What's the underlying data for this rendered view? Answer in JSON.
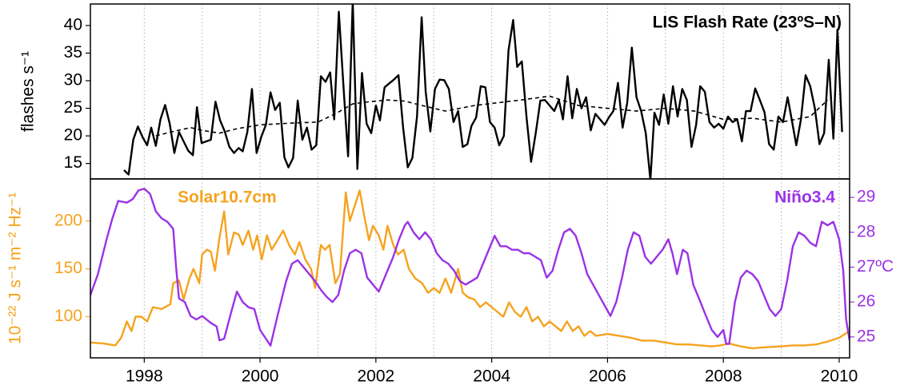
{
  "chart_data": [
    {
      "type": "line",
      "title": "LIS Flash Rate (23ºS–N)",
      "ylabel": "flashes s⁻¹",
      "xlim": [
        1997.07,
        2010.18
      ],
      "ylim": [
        12.2,
        43.9
      ],
      "yticks": [
        15,
        20,
        25,
        30,
        35,
        40
      ],
      "xgrid": [
        1998,
        1999,
        2000,
        2001,
        2002,
        2003,
        2004,
        2005,
        2006,
        2007,
        2008,
        2009,
        2010
      ],
      "series": [
        {
          "color": "#000000",
          "x": [
            1997.65,
            1997.73,
            1997.81,
            1997.89,
            1997.97,
            1998.05,
            1998.12,
            1998.2,
            1998.28,
            1998.36,
            1998.44,
            1998.52,
            1998.6,
            1998.68,
            1998.76,
            1998.84,
            1998.91,
            1998.99,
            1999.07,
            1999.15,
            1999.23,
            1999.31,
            1999.39,
            1999.47,
            1999.55,
            1999.63,
            1999.7,
            1999.78,
            1999.86,
            1999.94,
            2000.02,
            2000.1,
            2000.18,
            2000.26,
            2000.34,
            2000.42,
            2000.49,
            2000.57,
            2000.65,
            2000.73,
            2000.81,
            2000.89,
            2000.97,
            2001.05,
            2001.13,
            2001.21,
            2001.28,
            2001.36,
            2001.44,
            2001.52,
            2001.6,
            2001.68,
            2001.76,
            2001.84,
            2001.92,
            2002,
            2002.07,
            2002.15,
            2002.23,
            2002.31,
            2002.39,
            2002.47,
            2002.55,
            2002.63,
            2002.71,
            2002.79,
            2002.86,
            2002.94,
            2003.02,
            2003.1,
            2003.18,
            2003.26,
            2003.34,
            2003.42,
            2003.5,
            2003.58,
            2003.65,
            2003.73,
            2003.81,
            2003.89,
            2003.97,
            2004.05,
            2004.13,
            2004.21,
            2004.29,
            2004.37,
            2004.44,
            2004.52,
            2004.6,
            2004.68,
            2004.76,
            2004.84,
            2004.92,
            2005,
            2005.08,
            2005.16,
            2005.23,
            2005.31,
            2005.39,
            2005.47,
            2005.55,
            2005.63,
            2005.71,
            2005.79,
            2005.87,
            2005.95,
            2006.02,
            2006.1,
            2006.18,
            2006.26,
            2006.34,
            2006.42,
            2006.5,
            2006.58,
            2006.66,
            2006.74,
            2006.81,
            2006.89,
            2006.97,
            2007.05,
            2007.13,
            2007.21,
            2007.29,
            2007.37,
            2007.45,
            2007.53,
            2007.6,
            2007.68,
            2007.76,
            2007.84,
            2007.92,
            2008,
            2008.08,
            2008.16,
            2008.24,
            2008.32,
            2008.39,
            2008.47,
            2008.55,
            2008.63,
            2008.71,
            2008.79,
            2008.87,
            2008.95,
            2009.03,
            2009.11,
            2009.18,
            2009.26,
            2009.34,
            2009.42,
            2009.5,
            2009.58,
            2009.66,
            2009.74,
            2009.82,
            2009.9,
            2009.97,
            2010.05
          ],
          "values": [
            13.8,
            13.0,
            19.3,
            21.7,
            19.8,
            18.3,
            21.5,
            18.2,
            23.0,
            25.6,
            22.2,
            16.9,
            20.7,
            19.0,
            17.3,
            16.5,
            25.2,
            18.7,
            19.0,
            19.3,
            26.2,
            22.8,
            20.8,
            18.0,
            16.9,
            17.8,
            17.2,
            20.7,
            28.5,
            16.9,
            19.8,
            22.0,
            27.9,
            24.7,
            26.0,
            16.1,
            14.3,
            16.0,
            26.4,
            19.3,
            21.5,
            17.5,
            18.3,
            30.8,
            29.8,
            31.5,
            23.0,
            42.5,
            29.0,
            16.3,
            44.5,
            14.0,
            31.4,
            22.2,
            20.5,
            25.5,
            22.8,
            28.8,
            29.5,
            30.2,
            31.0,
            21.5,
            14.3,
            16.0,
            23.5,
            41.5,
            28.0,
            20.8,
            28.5,
            30.2,
            30.1,
            28.5,
            22.5,
            24.5,
            18.0,
            18.5,
            21.8,
            23.3,
            29.0,
            28.8,
            22.5,
            21.5,
            18.3,
            20.0,
            35.5,
            41.0,
            32.5,
            33.5,
            23.5,
            15.3,
            20.5,
            26.4,
            26.5,
            25.5,
            24.5,
            26.5,
            23.0,
            30.8,
            23.2,
            28.5,
            25.0,
            27.0,
            21.0,
            24.0,
            23.0,
            22.0,
            23.3,
            24.5,
            29.6,
            21.5,
            26.0,
            36.0,
            27.0,
            24.5,
            20.5,
            12.0,
            24.2,
            22.0,
            27.5,
            22.2,
            29.0,
            23.5,
            28.5,
            26.5,
            18.0,
            22.0,
            29.0,
            28.0,
            22.5,
            21.5,
            22.2,
            21.3,
            23.5,
            22.5,
            23.0,
            19.0,
            24.5,
            24.5,
            28.6,
            26.5,
            24.3,
            18.5,
            17.5,
            23.5,
            22.5,
            27.0,
            23.0,
            18.3,
            23.0,
            31.0,
            29.0,
            25.0,
            18.5,
            20.5,
            33.8,
            19.5,
            39.2,
            20.7
          ]
        },
        {
          "color": "#000000",
          "dash": true,
          "x": [
            1998.2,
            1998.5,
            1998.8,
            1999.0,
            1999.3,
            1999.6,
            2000.0,
            2000.5,
            2001.0,
            2001.3,
            2001.6,
            2001.9,
            2002.2,
            2002.5,
            2002.8,
            2003.2,
            2003.7,
            2004.1,
            2004.5,
            2005.0,
            2005.5,
            2006.0,
            2006.5,
            2007.0,
            2007.5,
            2008.0,
            2008.5,
            2009.0,
            2009.5,
            2009.8
          ],
          "values": [
            20.0,
            20.8,
            21.5,
            21.0,
            20.5,
            21.3,
            22.0,
            22.3,
            22.5,
            24.0,
            25.8,
            26.2,
            26.5,
            26.3,
            25.5,
            24.5,
            25.5,
            26.0,
            26.5,
            27.2,
            25.5,
            25.0,
            24.5,
            25.0,
            24.5,
            23.0,
            23.2,
            22.5,
            23.5,
            26.5
          ]
        }
      ]
    },
    {
      "type": "line",
      "ylabel": "10⁻²² J s⁻¹ m⁻² Hz⁻¹",
      "xlim": [
        1997.07,
        2010.18
      ],
      "ylim": [
        57,
        244
      ],
      "y2lim": [
        24.4,
        29.53
      ],
      "xticks": [
        1998,
        2000,
        2002,
        2004,
        2006,
        2008,
        2010
      ],
      "yticks": [
        100,
        150,
        200
      ],
      "y2ticks": [
        25,
        26,
        {
          "value": 27,
          "label": "27ºC"
        },
        28,
        29
      ],
      "xgrid": [
        1998,
        1999,
        2000,
        2001,
        2002,
        2003,
        2004,
        2005,
        2006,
        2007,
        2008,
        2009,
        2010
      ],
      "series": [
        {
          "name": "Solar10.7cm",
          "color": "#f5a31e",
          "x": [
            1997.07,
            1997.3,
            1997.5,
            1997.6,
            1997.7,
            1997.78,
            1997.85,
            1997.95,
            1998.05,
            1998.15,
            1998.3,
            1998.45,
            1998.5,
            1998.6,
            1998.68,
            1998.78,
            1998.85,
            1998.95,
            1999.0,
            1999.08,
            1999.15,
            1999.22,
            1999.3,
            1999.38,
            1999.45,
            1999.55,
            1999.63,
            1999.7,
            1999.8,
            1999.88,
            1999.95,
            2000.03,
            2000.12,
            2000.2,
            2000.3,
            2000.4,
            2000.5,
            2000.6,
            2000.68,
            2000.78,
            2000.88,
            2000.95,
            2001.05,
            2001.12,
            2001.2,
            2001.3,
            2001.38,
            2001.48,
            2001.55,
            2001.63,
            2001.72,
            2001.8,
            2001.88,
            2001.95,
            2002.05,
            2002.13,
            2002.2,
            2002.3,
            2002.38,
            2002.48,
            2002.57,
            2002.68,
            2002.8,
            2002.9,
            2003.0,
            2003.1,
            2003.2,
            2003.3,
            2003.42,
            2003.5,
            2003.6,
            2003.7,
            2003.8,
            2003.9,
            2004.0,
            2004.1,
            2004.2,
            2004.3,
            2004.4,
            2004.5,
            2004.6,
            2004.7,
            2004.8,
            2004.9,
            2005.0,
            2005.1,
            2005.2,
            2005.3,
            2005.4,
            2005.5,
            2005.6,
            2005.7,
            2005.8,
            2006.0,
            2006.2,
            2006.4,
            2006.6,
            2006.8,
            2007.0,
            2007.2,
            2007.4,
            2007.6,
            2007.8,
            2007.95,
            2008.1,
            2008.3,
            2008.5,
            2008.7,
            2009.0,
            2009.2,
            2009.4,
            2009.6,
            2009.8,
            2010.0,
            2010.15
          ],
          "values": [
            73,
            72,
            70,
            78,
            95,
            85,
            100,
            100,
            95,
            110,
            108,
            113,
            135,
            138,
            118,
            140,
            150,
            135,
            165,
            170,
            168,
            148,
            183,
            210,
            165,
            188,
            186,
            175,
            190,
            170,
            185,
            160,
            185,
            170,
            180,
            190,
            175,
            165,
            178,
            160,
            150,
            130,
            175,
            170,
            175,
            135,
            145,
            230,
            200,
            215,
            232,
            205,
            180,
            195,
            185,
            170,
            195,
            175,
            165,
            170,
            150,
            140,
            135,
            125,
            130,
            125,
            140,
            125,
            150,
            125,
            120,
            118,
            110,
            115,
            110,
            105,
            100,
            115,
            105,
            100,
            110,
            95,
            100,
            90,
            95,
            90,
            85,
            95,
            85,
            90,
            80,
            85,
            80,
            82,
            80,
            78,
            75,
            75,
            73,
            71,
            71,
            70,
            69,
            70,
            72,
            69,
            67,
            68,
            69,
            70,
            70,
            71,
            74,
            78,
            84
          ]
        },
        {
          "name": "Niño3.4",
          "color": "#9b32e6",
          "axis": "y2",
          "x": [
            1997.07,
            1997.2,
            1997.35,
            1997.45,
            1997.55,
            1997.7,
            1997.8,
            1997.9,
            1998.0,
            1998.1,
            1998.2,
            1998.3,
            1998.4,
            1998.5,
            1998.55,
            1998.6,
            1998.7,
            1998.8,
            1998.9,
            1999.0,
            1999.15,
            1999.25,
            1999.3,
            1999.38,
            1999.5,
            1999.6,
            1999.7,
            1999.8,
            1999.9,
            2000.0,
            2000.1,
            2000.18,
            2000.3,
            2000.45,
            2000.55,
            2000.65,
            2000.75,
            2000.85,
            2000.95,
            2001.05,
            2001.15,
            2001.25,
            2001.35,
            2001.45,
            2001.55,
            2001.65,
            2001.75,
            2001.85,
            2001.95,
            2002.05,
            2002.15,
            2002.3,
            2002.4,
            2002.5,
            2002.55,
            2002.65,
            2002.75,
            2002.85,
            2002.95,
            2003.05,
            2003.15,
            2003.25,
            2003.35,
            2003.45,
            2003.55,
            2003.65,
            2003.75,
            2003.85,
            2003.95,
            2004.05,
            2004.15,
            2004.25,
            2004.35,
            2004.45,
            2004.55,
            2004.65,
            2004.75,
            2004.85,
            2004.95,
            2005.05,
            2005.15,
            2005.25,
            2005.35,
            2005.45,
            2005.55,
            2005.65,
            2005.75,
            2005.85,
            2005.95,
            2006.05,
            2006.15,
            2006.25,
            2006.35,
            2006.45,
            2006.55,
            2006.65,
            2006.75,
            2006.85,
            2006.95,
            2007.05,
            2007.12,
            2007.2,
            2007.3,
            2007.38,
            2007.48,
            2007.58,
            2007.7,
            2007.8,
            2007.9,
            2008.0,
            2008.05,
            2008.1,
            2008.2,
            2008.3,
            2008.4,
            2008.5,
            2008.6,
            2008.7,
            2008.8,
            2008.9,
            2009.0,
            2009.1,
            2009.2,
            2009.3,
            2009.4,
            2009.5,
            2009.6,
            2009.7,
            2009.8,
            2009.9,
            2010.0,
            2010.07,
            2010.12,
            2010.18
          ],
          "values": [
            26.2,
            26.8,
            27.8,
            28.4,
            28.9,
            28.85,
            28.95,
            29.2,
            29.25,
            29.1,
            28.6,
            28.4,
            28.3,
            28.1,
            27.0,
            26.1,
            26.0,
            25.6,
            25.5,
            25.6,
            25.4,
            25.3,
            24.9,
            24.95,
            25.7,
            26.3,
            26.0,
            25.85,
            25.8,
            25.2,
            24.95,
            24.75,
            25.6,
            26.6,
            27.1,
            27.2,
            27.0,
            26.8,
            26.6,
            26.35,
            26.15,
            26.0,
            26.2,
            26.9,
            27.4,
            27.5,
            27.4,
            26.7,
            26.5,
            26.3,
            26.7,
            27.3,
            27.8,
            28.2,
            28.3,
            28.0,
            27.8,
            28.0,
            27.8,
            27.4,
            27.2,
            27.1,
            26.9,
            26.6,
            26.5,
            26.6,
            26.7,
            27.1,
            27.5,
            27.9,
            27.6,
            27.6,
            27.5,
            27.5,
            27.4,
            27.4,
            27.3,
            27.2,
            26.7,
            26.9,
            27.5,
            28.0,
            28.1,
            27.9,
            27.4,
            26.8,
            26.5,
            26.2,
            25.9,
            25.6,
            26.0,
            26.7,
            27.5,
            28.0,
            27.9,
            27.3,
            27.1,
            27.3,
            27.5,
            27.8,
            27.4,
            26.8,
            27.5,
            27.4,
            26.5,
            26.1,
            25.6,
            25.2,
            25.0,
            25.2,
            24.8,
            24.8,
            26.0,
            26.7,
            26.9,
            26.8,
            26.6,
            26.2,
            25.8,
            25.6,
            25.8,
            26.6,
            27.6,
            28.0,
            27.9,
            27.7,
            27.6,
            28.3,
            28.2,
            28.3,
            27.8,
            26.9,
            25.5,
            24.9
          ]
        }
      ]
    }
  ]
}
